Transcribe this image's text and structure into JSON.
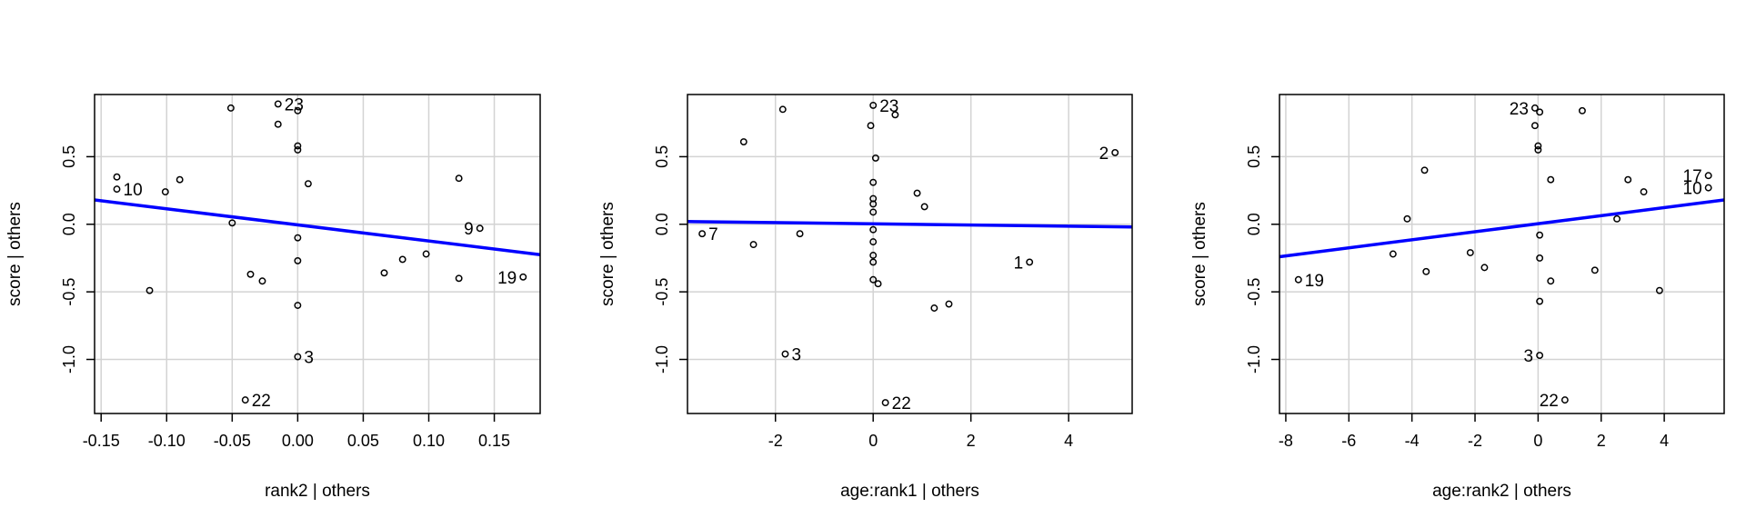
{
  "chart_data": [
    {
      "type": "scatter",
      "title": "",
      "xlabel": "rank2 | others",
      "ylabel": "score  | others",
      "xlim": [
        -0.155,
        0.185
      ],
      "ylim": [
        -1.4,
        0.96
      ],
      "xticks": [
        -0.15,
        -0.1,
        -0.05,
        0.0,
        0.05,
        0.1,
        0.15
      ],
      "xtick_labels": [
        "-0.15",
        "-0.10",
        "-0.05",
        "0.00",
        "0.05",
        "0.10",
        "0.15"
      ],
      "yticks": [
        -1.0,
        -0.5,
        0.0,
        0.5
      ],
      "ytick_labels": [
        "-1.0",
        "-0.5",
        "0.0",
        "0.5"
      ],
      "grid": true,
      "fit_line": {
        "x": [
          -0.155,
          0.185
        ],
        "y": [
          0.18,
          -0.225
        ],
        "color": "#0000ff"
      },
      "points": [
        {
          "x": -0.138,
          "y": 0.26,
          "label": "10",
          "label_side": "right"
        },
        {
          "x": -0.138,
          "y": 0.35,
          "label": "",
          "label_side": "right"
        },
        {
          "x": -0.101,
          "y": 0.24,
          "label": "",
          "label_side": "right"
        },
        {
          "x": -0.09,
          "y": 0.33,
          "label": "",
          "label_side": "right"
        },
        {
          "x": -0.113,
          "y": -0.49,
          "label": "",
          "label_side": "right"
        },
        {
          "x": -0.051,
          "y": 0.86,
          "label": "",
          "label_side": "right"
        },
        {
          "x": -0.05,
          "y": 0.01,
          "label": "",
          "label_side": "right"
        },
        {
          "x": -0.036,
          "y": -0.37,
          "label": "",
          "label_side": "right"
        },
        {
          "x": -0.027,
          "y": -0.42,
          "label": "",
          "label_side": "right"
        },
        {
          "x": -0.04,
          "y": -1.3,
          "label": "22",
          "label_side": "right"
        },
        {
          "x": -0.015,
          "y": 0.89,
          "label": "23",
          "label_side": "right"
        },
        {
          "x": -0.015,
          "y": 0.74,
          "label": "",
          "label_side": "right"
        },
        {
          "x": 0.0,
          "y": 0.84,
          "label": "",
          "label_side": "right"
        },
        {
          "x": 0.0,
          "y": 0.58,
          "label": "",
          "label_side": "right"
        },
        {
          "x": 0.0,
          "y": 0.55,
          "label": "",
          "label_side": "right"
        },
        {
          "x": 0.0,
          "y": -0.1,
          "label": "",
          "label_side": "right"
        },
        {
          "x": 0.0,
          "y": -0.27,
          "label": "",
          "label_side": "right"
        },
        {
          "x": 0.0,
          "y": -0.6,
          "label": "",
          "label_side": "right"
        },
        {
          "x": 0.0,
          "y": -0.98,
          "label": "3",
          "label_side": "right"
        },
        {
          "x": 0.008,
          "y": 0.3,
          "label": "",
          "label_side": "right"
        },
        {
          "x": 0.066,
          "y": -0.36,
          "label": "",
          "label_side": "right"
        },
        {
          "x": 0.08,
          "y": -0.26,
          "label": "",
          "label_side": "right"
        },
        {
          "x": 0.098,
          "y": -0.22,
          "label": "",
          "label_side": "right"
        },
        {
          "x": 0.123,
          "y": 0.34,
          "label": "",
          "label_side": "right"
        },
        {
          "x": 0.123,
          "y": -0.4,
          "label": "",
          "label_side": "right"
        },
        {
          "x": 0.139,
          "y": -0.03,
          "label": "9",
          "label_side": "left"
        },
        {
          "x": 0.172,
          "y": -0.39,
          "label": "19",
          "label_side": "left"
        }
      ]
    },
    {
      "type": "scatter",
      "title": "",
      "xlabel": "age:rank1 | others",
      "ylabel": "score  | others",
      "xlim": [
        -3.8,
        5.3
      ],
      "ylim": [
        -1.4,
        0.96
      ],
      "xticks": [
        -2,
        0,
        2,
        4
      ],
      "xtick_labels": [
        "-2",
        "0",
        "2",
        "4"
      ],
      "yticks": [
        -1.0,
        -0.5,
        0.0,
        0.5
      ],
      "ytick_labels": [
        "-1.0",
        "-0.5",
        "0.0",
        "0.5"
      ],
      "grid": true,
      "fit_line": {
        "x": [
          -3.8,
          5.3
        ],
        "y": [
          0.02,
          -0.02
        ],
        "color": "#0000ff"
      },
      "points": [
        {
          "x": -3.5,
          "y": -0.07,
          "label": "7",
          "label_side": "right"
        },
        {
          "x": -2.65,
          "y": 0.61,
          "label": "",
          "label_side": "right"
        },
        {
          "x": -2.45,
          "y": -0.15,
          "label": "",
          "label_side": "right"
        },
        {
          "x": -1.85,
          "y": 0.85,
          "label": "",
          "label_side": "right"
        },
        {
          "x": -1.8,
          "y": -0.96,
          "label": "3",
          "label_side": "right"
        },
        {
          "x": -1.5,
          "y": -0.07,
          "label": "",
          "label_side": "right"
        },
        {
          "x": 0.0,
          "y": 0.88,
          "label": "23",
          "label_side": "right"
        },
        {
          "x": -0.05,
          "y": 0.73,
          "label": "",
          "label_side": "right"
        },
        {
          "x": 0.05,
          "y": 0.49,
          "label": "",
          "label_side": "right"
        },
        {
          "x": 0.0,
          "y": 0.31,
          "label": "",
          "label_side": "right"
        },
        {
          "x": 0.0,
          "y": 0.19,
          "label": "",
          "label_side": "right"
        },
        {
          "x": 0.0,
          "y": 0.15,
          "label": "",
          "label_side": "right"
        },
        {
          "x": 0.0,
          "y": 0.09,
          "label": "",
          "label_side": "right"
        },
        {
          "x": 0.0,
          "y": -0.04,
          "label": "",
          "label_side": "right"
        },
        {
          "x": 0.0,
          "y": -0.13,
          "label": "",
          "label_side": "right"
        },
        {
          "x": 0.0,
          "y": -0.23,
          "label": "",
          "label_side": "right"
        },
        {
          "x": 0.0,
          "y": -0.28,
          "label": "",
          "label_side": "right"
        },
        {
          "x": 0.0,
          "y": -0.41,
          "label": "",
          "label_side": "right"
        },
        {
          "x": 0.1,
          "y": -0.44,
          "label": "",
          "label_side": "right"
        },
        {
          "x": 0.25,
          "y": -1.32,
          "label": "22",
          "label_side": "right"
        },
        {
          "x": 0.45,
          "y": 0.81,
          "label": "",
          "label_side": "right"
        },
        {
          "x": 0.9,
          "y": 0.23,
          "label": "",
          "label_side": "right"
        },
        {
          "x": 1.05,
          "y": 0.13,
          "label": "",
          "label_side": "right"
        },
        {
          "x": 1.25,
          "y": -0.62,
          "label": "",
          "label_side": "right"
        },
        {
          "x": 1.55,
          "y": -0.59,
          "label": "",
          "label_side": "right"
        },
        {
          "x": 3.2,
          "y": -0.28,
          "label": "1",
          "label_side": "left"
        },
        {
          "x": 4.95,
          "y": 0.53,
          "label": "2",
          "label_side": "left"
        }
      ]
    },
    {
      "type": "scatter",
      "title": "",
      "xlabel": "age:rank2 | others",
      "ylabel": "score  | others",
      "xlim": [
        -8.2,
        5.9
      ],
      "ylim": [
        -1.4,
        0.96
      ],
      "xticks": [
        -8,
        -6,
        -4,
        -2,
        0,
        2,
        4
      ],
      "xtick_labels": [
        "-8",
        "-6",
        "-4",
        "-2",
        "0",
        "2",
        "4"
      ],
      "yticks": [
        -1.0,
        -0.5,
        0.0,
        0.5
      ],
      "ytick_labels": [
        "-1.0",
        "-0.5",
        "0.0",
        "0.5"
      ],
      "grid": true,
      "fit_line": {
        "x": [
          -8.2,
          5.9
        ],
        "y": [
          -0.24,
          0.18
        ],
        "color": "#0000ff"
      },
      "points": [
        {
          "x": -7.6,
          "y": -0.41,
          "label": "19",
          "label_side": "right"
        },
        {
          "x": -4.6,
          "y": -0.22,
          "label": "",
          "label_side": "right"
        },
        {
          "x": -4.15,
          "y": 0.04,
          "label": "",
          "label_side": "right"
        },
        {
          "x": -3.6,
          "y": 0.4,
          "label": "",
          "label_side": "right"
        },
        {
          "x": -3.55,
          "y": -0.35,
          "label": "",
          "label_side": "right"
        },
        {
          "x": -2.15,
          "y": -0.21,
          "label": "",
          "label_side": "right"
        },
        {
          "x": -1.7,
          "y": -0.32,
          "label": "",
          "label_side": "right"
        },
        {
          "x": -0.1,
          "y": 0.86,
          "label": "23",
          "label_side": "left"
        },
        {
          "x": 0.05,
          "y": 0.83,
          "label": "",
          "label_side": "right"
        },
        {
          "x": -0.1,
          "y": 0.73,
          "label": "",
          "label_side": "right"
        },
        {
          "x": 0.0,
          "y": 0.58,
          "label": "",
          "label_side": "right"
        },
        {
          "x": 0.0,
          "y": 0.55,
          "label": "",
          "label_side": "right"
        },
        {
          "x": 0.05,
          "y": -0.08,
          "label": "",
          "label_side": "right"
        },
        {
          "x": 0.05,
          "y": -0.25,
          "label": "",
          "label_side": "right"
        },
        {
          "x": 0.05,
          "y": -0.57,
          "label": "",
          "label_side": "right"
        },
        {
          "x": 0.05,
          "y": -0.97,
          "label": "3",
          "label_side": "left"
        },
        {
          "x": 0.4,
          "y": 0.33,
          "label": "",
          "label_side": "right"
        },
        {
          "x": 0.4,
          "y": -0.42,
          "label": "",
          "label_side": "right"
        },
        {
          "x": 0.85,
          "y": -1.3,
          "label": "22",
          "label_side": "left"
        },
        {
          "x": 1.4,
          "y": 0.84,
          "label": "",
          "label_side": "right"
        },
        {
          "x": 1.8,
          "y": -0.34,
          "label": "",
          "label_side": "right"
        },
        {
          "x": 2.5,
          "y": 0.04,
          "label": "",
          "label_side": "right"
        },
        {
          "x": 2.85,
          "y": 0.33,
          "label": "",
          "label_side": "right"
        },
        {
          "x": 3.35,
          "y": 0.24,
          "label": "",
          "label_side": "right"
        },
        {
          "x": 3.85,
          "y": -0.49,
          "label": "",
          "label_side": "right"
        },
        {
          "x": 5.4,
          "y": 0.36,
          "label": "17",
          "label_side": "left"
        },
        {
          "x": 5.4,
          "y": 0.27,
          "label": "10",
          "label_side": "left"
        }
      ]
    }
  ]
}
